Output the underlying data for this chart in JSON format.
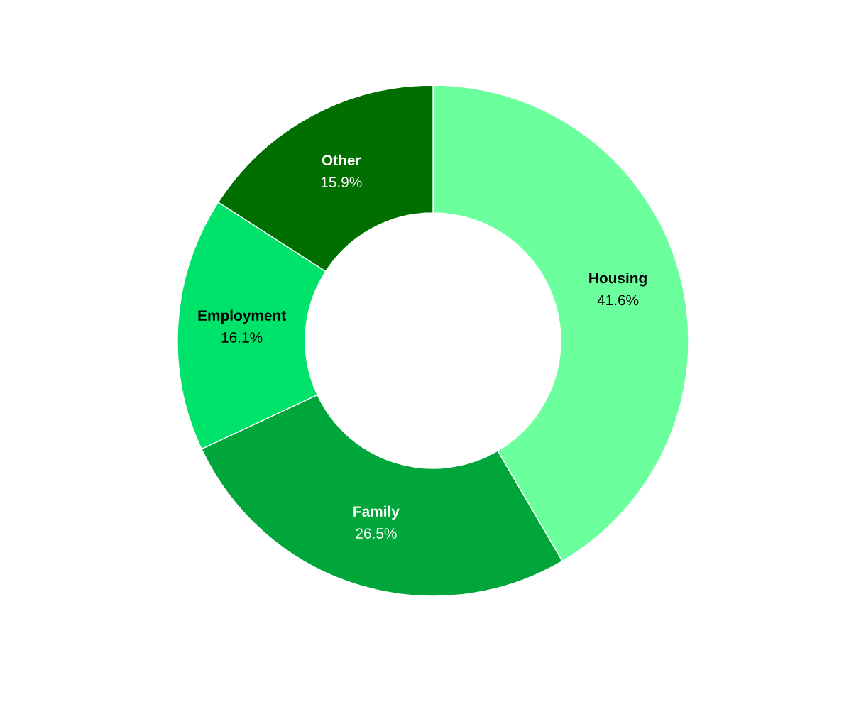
{
  "chart_data": {
    "type": "donut",
    "categories": [
      "Housing",
      "Family",
      "Employment",
      "Other"
    ],
    "values": [
      41.6,
      26.5,
      16.1,
      15.9
    ],
    "value_labels": [
      "41.6%",
      "26.5%",
      "16.1%",
      "15.9%"
    ],
    "colors": [
      "#6cff9e",
      "#00a63a",
      "#00e36b",
      "#006f00"
    ],
    "legend": false
  }
}
